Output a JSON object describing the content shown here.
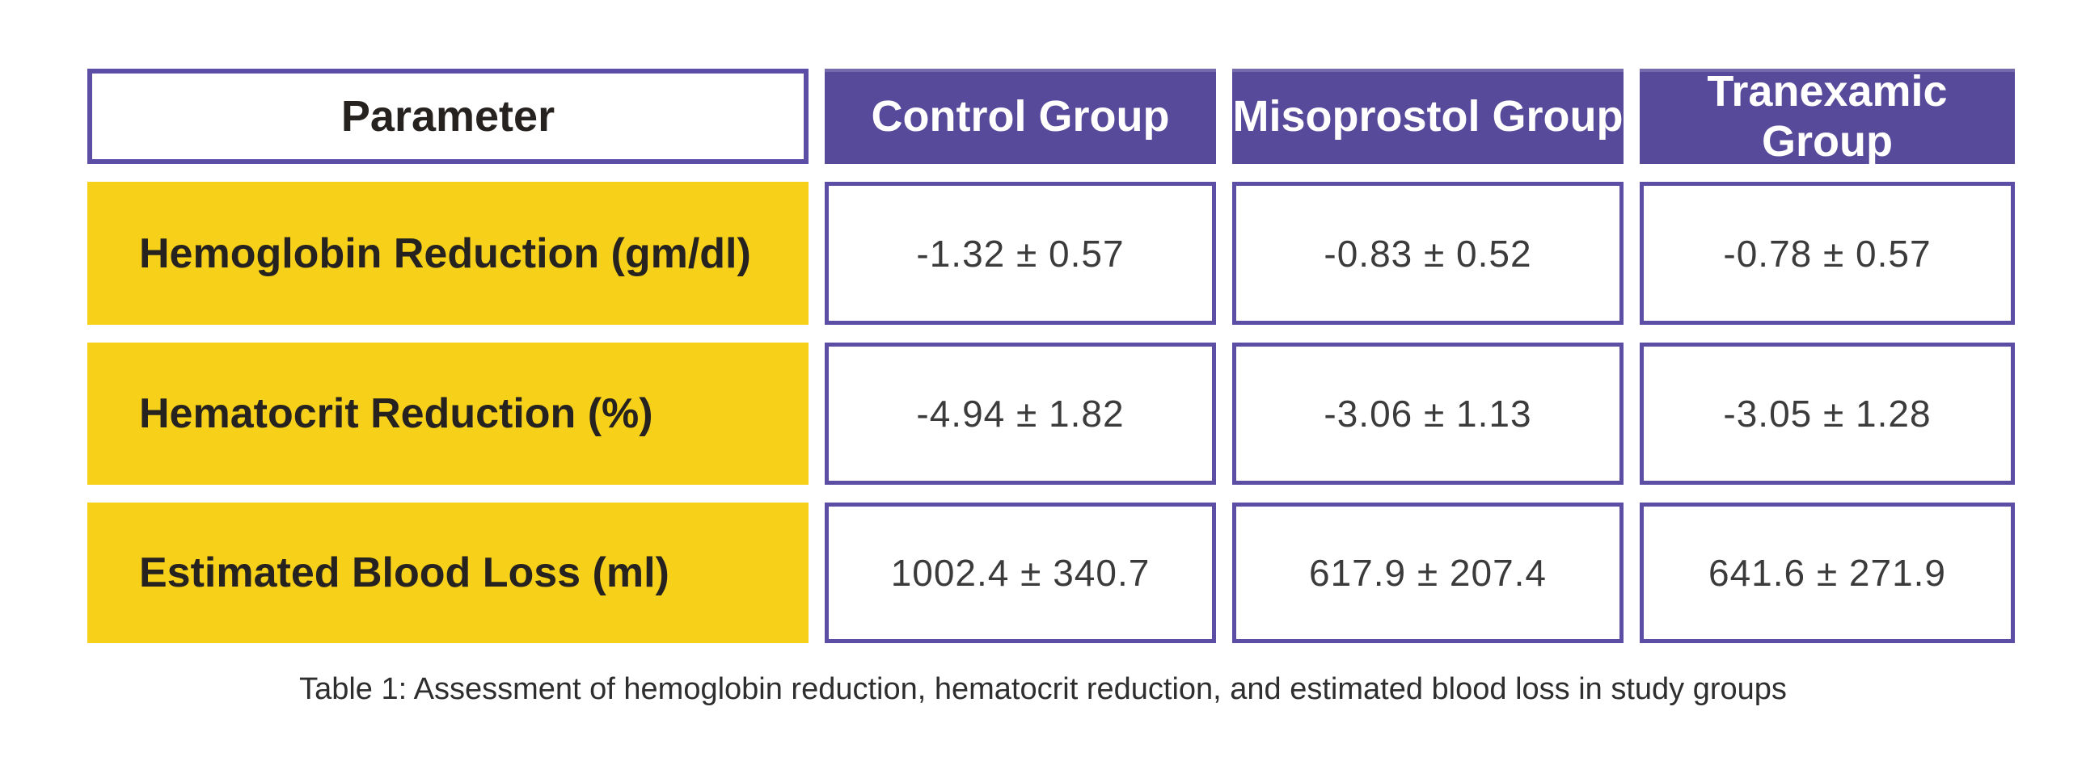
{
  "table": {
    "columns": [
      "Parameter",
      "Control Group",
      "Misoprostol Group",
      "Tranexamic Group"
    ],
    "rows": [
      {
        "label": "Hemoglobin Reduction (gm/dl)",
        "values": [
          "-1.32 ± 0.57",
          "-0.83 ± 0.52",
          "-0.78 ± 0.57"
        ]
      },
      {
        "label": "Hematocrit Reduction (%)",
        "values": [
          "-4.94 ± 1.82",
          "-3.06 ± 1.13",
          "-3.05 ± 1.28"
        ]
      },
      {
        "label": "Estimated Blood Loss (ml)",
        "values": [
          "1002.4 ± 340.7",
          "617.9 ± 207.4",
          "641.6 ± 271.9"
        ]
      }
    ],
    "caption": "Table 1: Assessment of hemoglobin reduction, hematocrit reduction, and estimated blood loss in study groups"
  },
  "colors": {
    "header-purple": "#584A9A",
    "border-purple": "#5C4EA4",
    "row-yellow": "#F7D01A",
    "label-text": "#262220",
    "value-text": "#3B3B3B",
    "caption-text": "#2E2E2E"
  },
  "chart_data": {
    "type": "table",
    "title": "Table 1: Assessment of hemoglobin reduction, hematocrit reduction, and estimated blood loss in study groups",
    "categories": [
      "Control Group",
      "Misoprostol Group",
      "Tranexamic Group"
    ],
    "series": [
      {
        "name": "Hemoglobin Reduction (gm/dl)",
        "values": [
          -1.32,
          -0.83,
          -0.78
        ],
        "sd": [
          0.57,
          0.52,
          0.57
        ]
      },
      {
        "name": "Hematocrit Reduction (%)",
        "values": [
          -4.94,
          -3.06,
          -3.05
        ],
        "sd": [
          1.82,
          1.13,
          1.28
        ]
      },
      {
        "name": "Estimated Blood Loss (ml)",
        "values": [
          1002.4,
          617.9,
          641.6
        ],
        "sd": [
          340.7,
          207.4,
          271.9
        ]
      }
    ]
  }
}
